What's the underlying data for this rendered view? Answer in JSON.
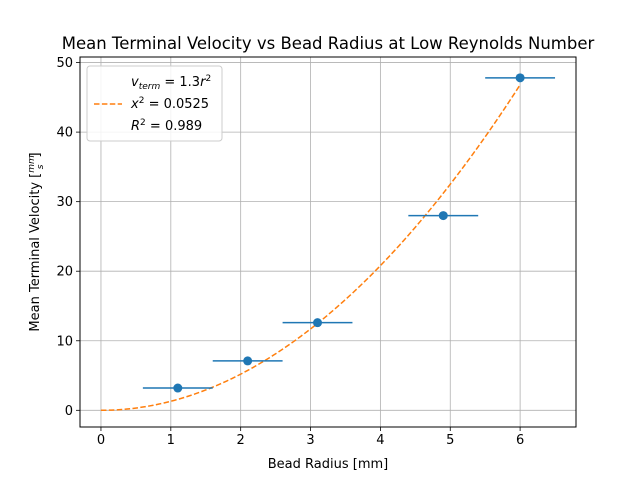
{
  "chart_data": {
    "type": "scatter",
    "title": "Mean Terminal Velocity vs Bead Radius at Low Reynolds Number",
    "xlabel": "Bead Radius [mm]",
    "ylabel": "Mean Terminal Velocity [mm/s]",
    "xlim": [
      -0.3,
      6.8
    ],
    "ylim": [
      -2.4,
      50.8
    ],
    "xticks": [
      0,
      1,
      2,
      3,
      4,
      5,
      6
    ],
    "yticks": [
      0,
      10,
      20,
      30,
      40,
      50
    ],
    "grid": true,
    "legend_position": "top-left",
    "legend": {
      "line1": "v_term = 1.3r^2",
      "line2": "x^2 = 0.0525",
      "line3": "R^2 = 0.989"
    },
    "series": [
      {
        "kind": "measurements",
        "color": "#1f77b4",
        "x": [
          1.1,
          2.1,
          3.1,
          4.9,
          6.0
        ],
        "y": [
          3.2,
          7.1,
          12.6,
          28.0,
          47.8
        ],
        "xerr": [
          0.5,
          0.5,
          0.5,
          0.5,
          0.5
        ]
      },
      {
        "kind": "fit",
        "style": "dashed",
        "color": "#ff7f0e",
        "coefficient": 1.3,
        "exponent": 2,
        "x_range": [
          0,
          6
        ]
      }
    ]
  }
}
